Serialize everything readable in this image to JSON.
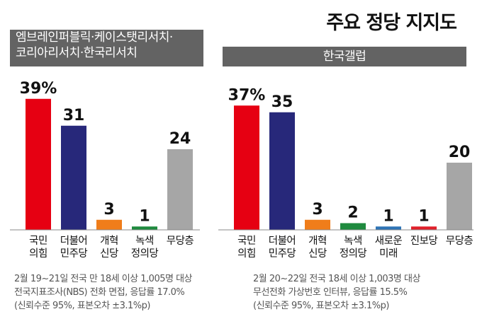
{
  "title": "주요 정당 지지도",
  "chart_data": [
    {
      "type": "bar",
      "header_lines": [
        "엠브레인퍼블릭·케이스탯리서치·",
        "코리아리서치·한국리서치"
      ],
      "categories": [
        [
          "국민",
          "의힘"
        ],
        [
          "더불어",
          "민주당"
        ],
        [
          "개혁",
          "신당"
        ],
        [
          "녹색",
          "정의당"
        ],
        [
          "무당층"
        ]
      ],
      "values": [
        39,
        31,
        3,
        1,
        24
      ],
      "value_labels": [
        "39%",
        "31",
        "3",
        "1",
        "24"
      ],
      "colors": [
        "#e60012",
        "#27287a",
        "#f07d1a",
        "#1f8a3e",
        "#a6a6a6"
      ],
      "ylim": [
        0,
        40
      ],
      "notes": [
        "2월 19~21일 전국 만 18세 이상 1,005명 대상",
        "전국지표조사(NBS) 전화 면접, 응답률 17.0%",
        "(신뢰수준 95%, 표본오차 ±3.1%p)"
      ]
    },
    {
      "type": "bar",
      "header_lines": [
        "한국갤럽"
      ],
      "categories": [
        [
          "국민",
          "의힘"
        ],
        [
          "더불어",
          "민주당"
        ],
        [
          "개혁",
          "신당"
        ],
        [
          "녹색",
          "정의당"
        ],
        [
          "새로운",
          "미래"
        ],
        [
          "진보당"
        ],
        [
          "무당층"
        ]
      ],
      "values": [
        37,
        35,
        3,
        2,
        1,
        1,
        20
      ],
      "value_labels": [
        "37%",
        "35",
        "3",
        "2",
        "1",
        "1",
        "20"
      ],
      "colors": [
        "#e60012",
        "#27287a",
        "#f07d1a",
        "#1f8a3e",
        "#2f74b5",
        "#e0202a",
        "#a6a6a6"
      ],
      "ylim": [
        0,
        40
      ],
      "notes": [
        "2월 20~22일 전국 18세 이상 1,003명 대상",
        "무선전화 가상번호 인터뷰, 응답률 15.5%",
        "(신뢰수준 95%, 표본오차 ±3.1%p)"
      ]
    }
  ]
}
